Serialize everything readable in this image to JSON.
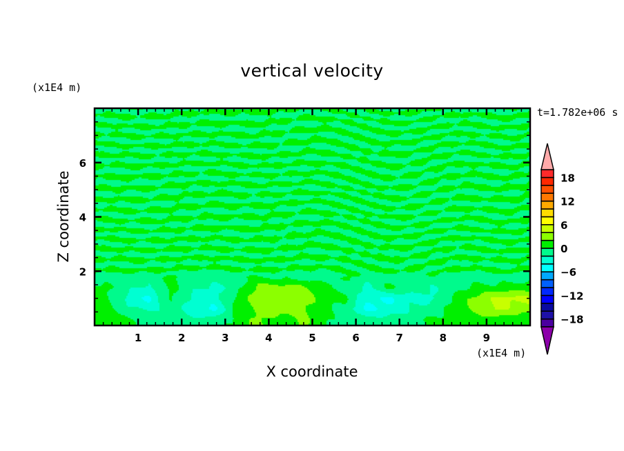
{
  "chart_data": {
    "type": "heatmap",
    "subtype": "filled-contour",
    "title": "vertical velocity",
    "xlabel": "X coordinate",
    "ylabel": "Z coordinate",
    "x_unit_label": "(x1E4 m)",
    "y_unit_label": "(x1E4 m)",
    "time_label": "t=1.782e+06 s",
    "xlim": [
      0,
      10
    ],
    "ylim": [
      0,
      8
    ],
    "x_ticks": [
      1,
      2,
      3,
      4,
      5,
      6,
      7,
      8,
      9
    ],
    "y_ticks": [
      2,
      4,
      6
    ],
    "grid": false,
    "colorbar": {
      "position": "right",
      "levels": [
        -20,
        -18,
        -16,
        -14,
        -12,
        -10,
        -8,
        -6,
        -4,
        -2,
        0,
        2,
        4,
        6,
        8,
        10,
        12,
        14,
        16,
        18,
        20
      ],
      "tick_labels": [
        "18",
        "12",
        "6",
        "0",
        "-6",
        "-12",
        "-18"
      ],
      "tick_values": [
        18,
        12,
        6,
        0,
        -6,
        -12,
        -18
      ],
      "colors_low_to_high": [
        "#4b00a0",
        "#1e10a8",
        "#0a0aa0",
        "#0000ff",
        "#0028ff",
        "#0060ff",
        "#00a8ff",
        "#00ffff",
        "#00ffd2",
        "#00fa8c",
        "#00f000",
        "#8cff00",
        "#c8ff00",
        "#ffff00",
        "#ffdc00",
        "#ffaa00",
        "#ff7800",
        "#ff5000",
        "#ff2800",
        "#ff2a2a"
      ],
      "under_color": "#8c00aa",
      "over_color": "#ffaaaa"
    },
    "lower_layer_grid": {
      "x": [
        0.25,
        0.75,
        1.25,
        1.75,
        2.25,
        2.75,
        3.25,
        3.75,
        4.25,
        4.75,
        5.25,
        5.75,
        6.25,
        6.75,
        7.25,
        7.75,
        8.25,
        8.75,
        9.25,
        9.75
      ],
      "z": [
        1.8,
        1.4,
        1.0,
        0.6,
        0.2
      ],
      "w": [
        [
          -1,
          -1,
          -1,
          0.5,
          -1,
          -1,
          -1,
          0.5,
          -1,
          -1,
          -1,
          0.5,
          -1,
          -1,
          -1,
          -1,
          -1,
          -1,
          -1,
          -1
        ],
        [
          0.5,
          -1.5,
          -2.5,
          0.5,
          -1.5,
          -2.5,
          -1,
          2.5,
          3,
          2.5,
          0.5,
          -1,
          -2.5,
          0.5,
          -1,
          -2,
          -1,
          0.5,
          0.5,
          1
        ],
        [
          0.5,
          -2.5,
          -4.5,
          0.5,
          -2.5,
          -3,
          0.5,
          3,
          3,
          3.5,
          1,
          0.5,
          -3.5,
          -4.5,
          -2.5,
          -2.5,
          0.5,
          2.5,
          4.5,
          4.5
        ],
        [
          0.5,
          -1.5,
          -2.5,
          -1,
          -3,
          -4.5,
          0.5,
          2.5,
          3,
          2.5,
          0.5,
          -1,
          -4.5,
          -3.5,
          -2,
          -1,
          0.5,
          2.5,
          4.5,
          3
        ],
        [
          0.5,
          0.5,
          -1,
          -1,
          -1.5,
          -1,
          0.5,
          2.5,
          1,
          2.5,
          0.5,
          -1,
          -1,
          -1,
          -1,
          0.5,
          0.5,
          1,
          1,
          0.5
        ]
      ],
      "upper_layer_range": [
        -2,
        2
      ]
    }
  }
}
